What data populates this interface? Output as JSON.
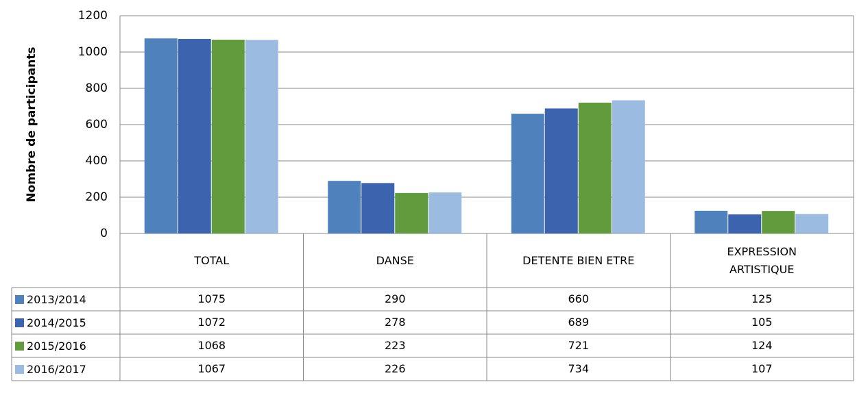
{
  "chart_data": {
    "type": "bar",
    "y_label": "Nombre de participants",
    "categories": [
      "TOTAL",
      "DANSE",
      "DETENTE BIEN ETRE",
      "EXPRESSION ARTISTIQUE"
    ],
    "series": [
      {
        "name": "2013/2014",
        "color": "#4f81bd",
        "values": [
          1075,
          290,
          660,
          125
        ]
      },
      {
        "name": "2014/2015",
        "color": "#3c64ae",
        "values": [
          1072,
          278,
          689,
          105
        ]
      },
      {
        "name": "2015/2016",
        "color": "#629b3e",
        "values": [
          1068,
          223,
          721,
          124
        ]
      },
      {
        "name": "2016/2017",
        "color": "#9bbbe0",
        "values": [
          1067,
          226,
          734,
          107
        ]
      }
    ],
    "ylim": [
      0,
      1200
    ],
    "yticks": [
      0,
      200,
      400,
      600,
      800,
      1000,
      1200
    ],
    "grid": true
  }
}
